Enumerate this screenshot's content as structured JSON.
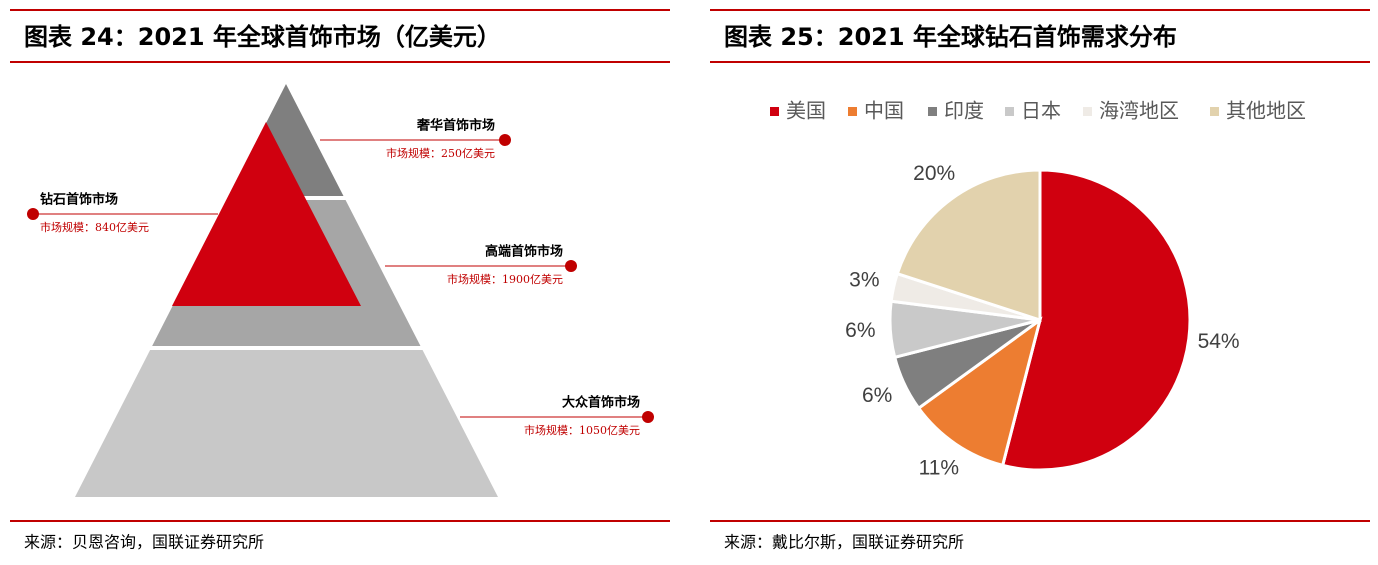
{
  "chart_data": [
    {
      "type": "pyramid",
      "title": "图表 24：2021 年全球首饰市场（亿美元）",
      "categories": [
        "奢华首饰市场",
        "钻石首饰市场",
        "高端首饰市场",
        "大众首饰市场"
      ],
      "values": [
        250,
        840,
        1900,
        1050
      ],
      "value_labels": [
        "市场规模：250亿美元",
        "市场规模：840亿美元",
        "市场规模：1900亿美元",
        "市场规模：1050亿美元"
      ],
      "colors": [
        "#7f7f7f",
        "#d0000f",
        "#a6a6a6",
        "#c8c8c8"
      ],
      "source": "来源：贝恩咨询，国联证券研究所"
    },
    {
      "type": "pie",
      "title": "图表 25：2021 年全球钻石首饰需求分布",
      "categories": [
        "美国",
        "中国",
        "印度",
        "日本",
        "海湾地区",
        "其他地区"
      ],
      "values": [
        54,
        11,
        6,
        6,
        3,
        20
      ],
      "value_labels": [
        "54%",
        "11%",
        "6%",
        "6%",
        "3%",
        "20%"
      ],
      "colors": [
        "#d0000f",
        "#ed7d31",
        "#7f7f7f",
        "#c9c9c9",
        "#efebe6",
        "#e2d2ad"
      ],
      "legend": "top",
      "source": "来源：戴比尔斯，国联证券研究所"
    }
  ]
}
